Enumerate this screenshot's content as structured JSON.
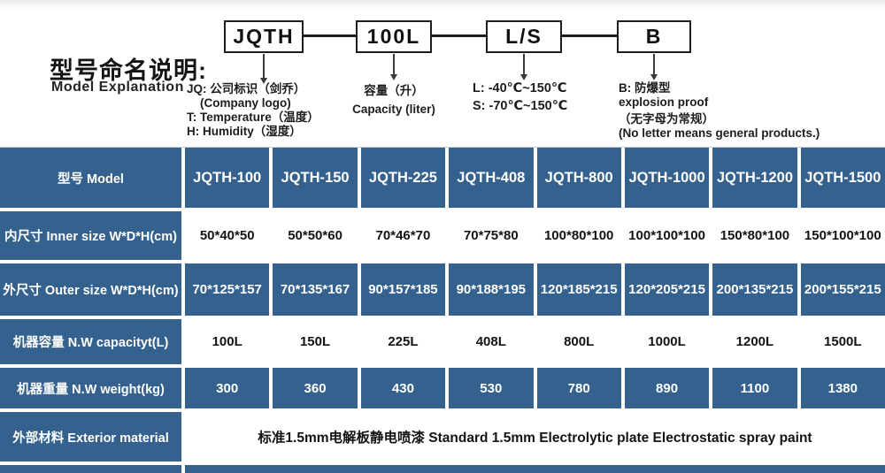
{
  "diagram": {
    "title_zh": "型号命名说明:",
    "title_en": "Model Explanation",
    "boxes": [
      "JQTH",
      "100L",
      "L/S",
      "B"
    ],
    "notes": {
      "jq": [
        "JQ: 公司标识（剑乔）",
        "(Company logo)",
        "T: Temperature（温度）",
        "H: Humidity（湿度）"
      ],
      "capacity": [
        "容量（升）",
        "Capacity (liter)"
      ],
      "temp_range": [
        "L: -40℃~150℃",
        "S: -70℃~150℃"
      ],
      "explosion": [
        "B: 防爆型",
        "explosion proof",
        "（无字母为常规）",
        "(No letter means general products.)"
      ]
    }
  },
  "table": {
    "header_label": "型号 Model",
    "models": [
      "JQTH-100",
      "JQTH-150",
      "JQTH-225",
      "JQTH-408",
      "JQTH-800",
      "JQTH-1000",
      "JQTH-1200",
      "JQTH-1500"
    ],
    "rows": [
      {
        "label": "内尺寸 Inner size W*D*H(cm)",
        "values": [
          "50*40*50",
          "50*50*60",
          "70*46*70",
          "70*75*80",
          "100*80*100",
          "100*100*100",
          "150*80*100",
          "150*100*100"
        ]
      },
      {
        "label": "外尺寸 Outer size W*D*H(cm)",
        "values": [
          "70*125*157",
          "70*135*167",
          "90*157*185",
          "90*188*195",
          "120*185*215",
          "120*205*215",
          "200*135*215",
          "200*155*215"
        ]
      },
      {
        "label": "机器容量 N.W capacityt(L)",
        "values": [
          "100L",
          "150L",
          "225L",
          "408L",
          "800L",
          "1000L",
          "1200L",
          "1500L"
        ]
      },
      {
        "label": "机器重量 N.W weight(kg)",
        "values": [
          "300",
          "360",
          "430",
          "530",
          "780",
          "890",
          "1100",
          "1380"
        ]
      },
      {
        "label": "外部材料 Exterior material",
        "values": [
          "标准1.5mm电解板静电喷漆  Standard 1.5mm Electrolytic plate Electrostatic spray paint"
        ]
      }
    ]
  },
  "colors": {
    "table_blue": "#34618D"
  }
}
